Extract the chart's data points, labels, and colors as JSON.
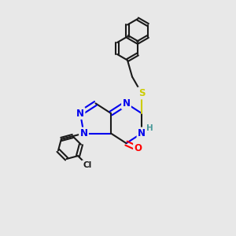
{
  "background_color": "#e8e8e8",
  "bond_color": "#1a1a1a",
  "bond_width": 1.5,
  "atom_colors": {
    "N": "#0000ee",
    "O": "#ff0000",
    "S": "#cccc00",
    "Cl": "#1a1a1a",
    "H": "#4a9a9a",
    "C": "#1a1a1a"
  },
  "fs": 8.5,
  "figsize": [
    3.0,
    3.0
  ],
  "dpi": 100
}
